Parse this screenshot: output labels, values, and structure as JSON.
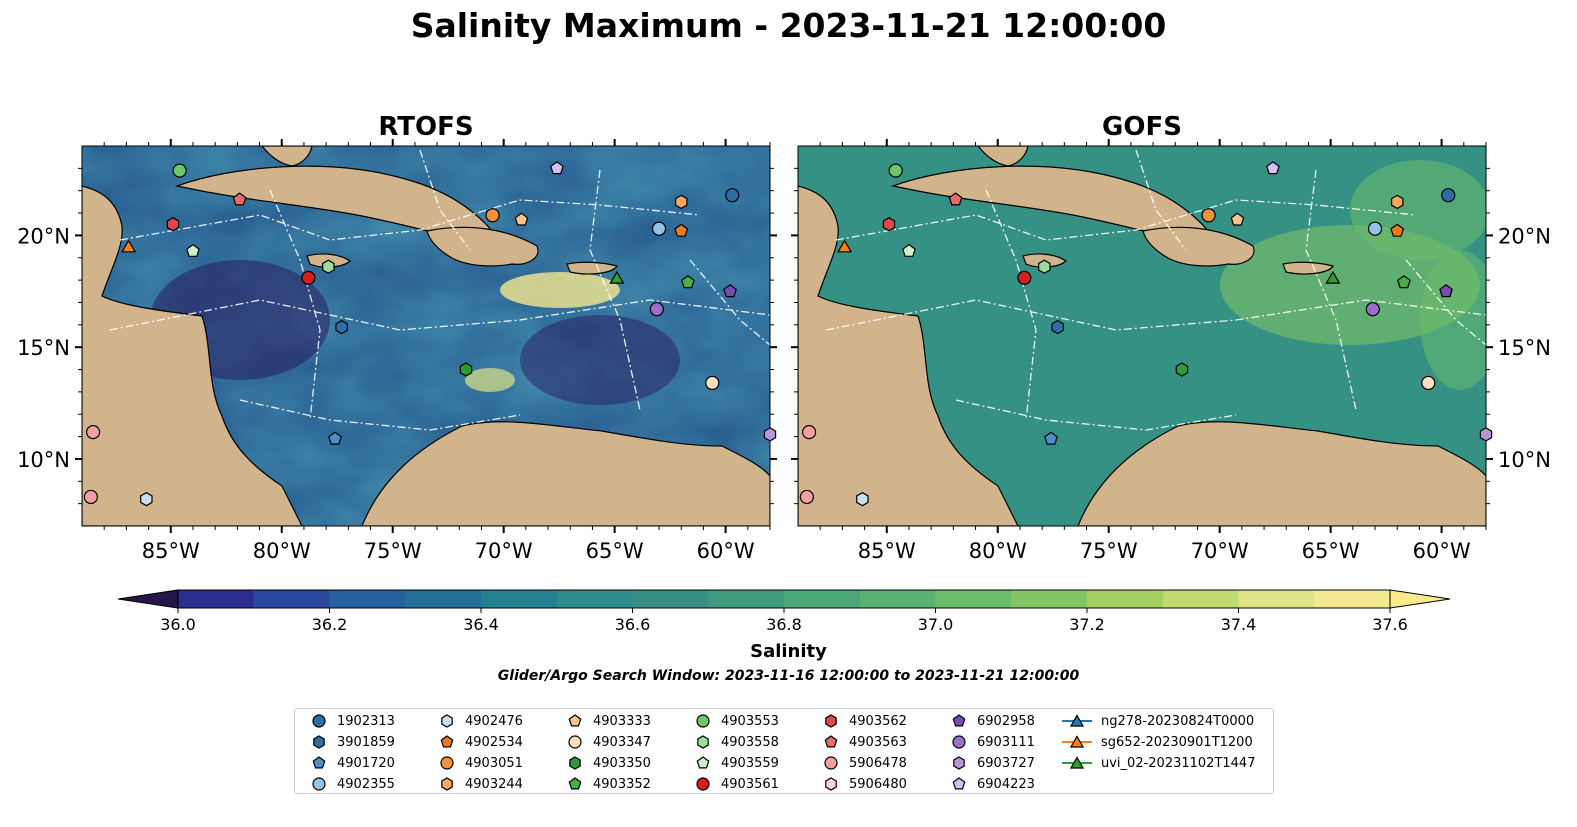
{
  "title": "Salinity Maximum - 2023-11-21 12:00:00",
  "panels": [
    {
      "id": "rtofs",
      "title": "RTOFS"
    },
    {
      "id": "gofs",
      "title": "GOFS"
    }
  ],
  "axes": {
    "lon_ticks": [
      "85°W",
      "80°W",
      "75°W",
      "70°W",
      "65°W",
      "60°W"
    ],
    "lon_values": [
      -85,
      -80,
      -75,
      -70,
      -65,
      -60
    ],
    "lat_ticks": [
      "20°N",
      "15°N",
      "10°N"
    ],
    "lat_values": [
      20,
      15,
      10
    ],
    "lon_range": [
      -89,
      -58
    ],
    "lat_range": [
      7,
      24
    ]
  },
  "colorbar": {
    "label": "Salinity",
    "ticks": [
      "36.0",
      "36.2",
      "36.4",
      "36.6",
      "36.8",
      "37.0",
      "37.2",
      "37.4",
      "37.6"
    ],
    "tick_values": [
      36.0,
      36.2,
      36.4,
      36.6,
      36.8,
      37.0,
      37.2,
      37.4,
      37.6
    ],
    "levels": [
      36.0,
      36.1,
      36.2,
      36.3,
      36.4,
      36.5,
      36.6,
      36.7,
      36.8,
      36.9,
      37.0,
      37.1,
      37.2,
      37.3,
      37.4,
      37.5,
      37.6
    ],
    "colors": [
      "#2a1a5e",
      "#2b2d8f",
      "#2a48a0",
      "#26609f",
      "#226f98",
      "#22808f",
      "#2b8d89",
      "#358f84",
      "#3f9a7e",
      "#4aa879",
      "#58b372",
      "#6cbd69",
      "#84c663",
      "#a2d05f",
      "#c0da6e",
      "#dee384",
      "#f5e98f"
    ],
    "under_color": "#251549",
    "over_color": "#f8ea8a"
  },
  "search_window": "Glider/Argo Search Window: 2023-11-16 12:00:00 to 2023-11-21 12:00:00",
  "colors": {
    "land": "#d2b48c",
    "ocean_rtofs": "#1f7a8c",
    "ocean_gofs": "#3f9a7e",
    "lakes": "#8fb6e0"
  },
  "legend": [
    {
      "label": "1902313",
      "marker": "circle",
      "color": "#2b6ea6"
    },
    {
      "label": "3901859",
      "marker": "hexagon",
      "color": "#2f6fa8"
    },
    {
      "label": "4901720",
      "marker": "pentagon",
      "color": "#4d8fcb"
    },
    {
      "label": "4902355",
      "marker": "circle",
      "color": "#92c3e6"
    },
    {
      "label": "4902476",
      "marker": "hexagon",
      "color": "#c4e0f2"
    },
    {
      "label": "4902534",
      "marker": "pentagon",
      "color": "#ef7a1a"
    },
    {
      "label": "4903051",
      "marker": "circle",
      "color": "#f5923a"
    },
    {
      "label": "4903244",
      "marker": "hexagon",
      "color": "#f8a660"
    },
    {
      "label": "4903333",
      "marker": "pentagon",
      "color": "#fac28e"
    },
    {
      "label": "4903347",
      "marker": "circle",
      "color": "#fde0c2"
    },
    {
      "label": "4903350",
      "marker": "hexagon",
      "color": "#2e9a33"
    },
    {
      "label": "4903352",
      "marker": "pentagon",
      "color": "#45b046"
    },
    {
      "label": "4903553",
      "marker": "circle",
      "color": "#6cc66b"
    },
    {
      "label": "4903558",
      "marker": "hexagon",
      "color": "#9cdc9a"
    },
    {
      "label": "4903559",
      "marker": "pentagon",
      "color": "#ccf0c9"
    },
    {
      "label": "4903561",
      "marker": "circle",
      "color": "#d21f1f"
    },
    {
      "label": "4903562",
      "marker": "hexagon",
      "color": "#e04848"
    },
    {
      "label": "4903563",
      "marker": "pentagon",
      "color": "#eb6a6a"
    },
    {
      "label": "5906478",
      "marker": "circle",
      "color": "#f5a0a0"
    },
    {
      "label": "5906480",
      "marker": "hexagon",
      "color": "#fbd4d4"
    },
    {
      "label": "6902958",
      "marker": "pentagon",
      "color": "#7a4bb0"
    },
    {
      "label": "6903111",
      "marker": "circle",
      "color": "#9b6fc8"
    },
    {
      "label": "6903727",
      "marker": "hexagon",
      "color": "#b896dc"
    },
    {
      "label": "6904223",
      "marker": "pentagon",
      "color": "#d5bff0"
    },
    {
      "label": "ng278-20230824T0000",
      "marker": "triangle-line",
      "color": "#1f77b4"
    },
    {
      "label": "sg652-20230901T1200",
      "marker": "triangle-line",
      "color": "#ff7f0e"
    },
    {
      "label": "uvi_02-20231102T1447",
      "marker": "triangle-line",
      "color": "#2ca02c"
    }
  ],
  "observations": [
    {
      "id": "1902313",
      "lon": -59.7,
      "lat": 21.8
    },
    {
      "id": "4902355",
      "lon": -63.0,
      "lat": 20.3
    },
    {
      "id": "4902534",
      "lon": -62.0,
      "lat": 20.2
    },
    {
      "id": "4903244",
      "lon": -62.0,
      "lat": 21.5
    },
    {
      "id": "4903051",
      "lon": -70.5,
      "lat": 20.9
    },
    {
      "id": "4903333",
      "lon": -69.2,
      "lat": 20.7
    },
    {
      "id": "6904223",
      "lon": -67.6,
      "lat": 23.0
    },
    {
      "id": "4903553",
      "lon": -84.6,
      "lat": 22.9
    },
    {
      "id": "4903563",
      "lon": -81.9,
      "lat": 21.6
    },
    {
      "id": "4903562",
      "lon": -84.9,
      "lat": 20.5
    },
    {
      "id": "4903559",
      "lon": -84.0,
      "lat": 19.3
    },
    {
      "id": "4903558",
      "lon": -77.9,
      "lat": 18.6
    },
    {
      "id": "4903561",
      "lon": -78.8,
      "lat": 18.1
    },
    {
      "id": "4903352",
      "lon": -61.7,
      "lat": 17.9
    },
    {
      "id": "6902958",
      "lon": -59.8,
      "lat": 17.5
    },
    {
      "id": "6903111",
      "lon": -63.1,
      "lat": 16.7
    },
    {
      "id": "3901859",
      "lon": -77.3,
      "lat": 15.9
    },
    {
      "id": "4903350",
      "lon": -71.7,
      "lat": 14.0
    },
    {
      "id": "4903347",
      "lon": -60.6,
      "lat": 13.4
    },
    {
      "id": "4901720",
      "lon": -77.6,
      "lat": 10.9
    },
    {
      "id": "5906478",
      "lon": -88.5,
      "lat": 11.2
    },
    {
      "id": "6903727",
      "lon": -58.0,
      "lat": 11.1
    },
    {
      "id": "5906478",
      "lon": -88.6,
      "lat": 8.3
    },
    {
      "id": "4902476",
      "lon": -86.1,
      "lat": 8.2
    },
    {
      "id": "sg652-20230901T1200",
      "lon": -86.9,
      "lat": 19.5
    },
    {
      "id": "uvi_02-20231102T1447",
      "lon": -64.9,
      "lat": 18.1
    }
  ]
}
